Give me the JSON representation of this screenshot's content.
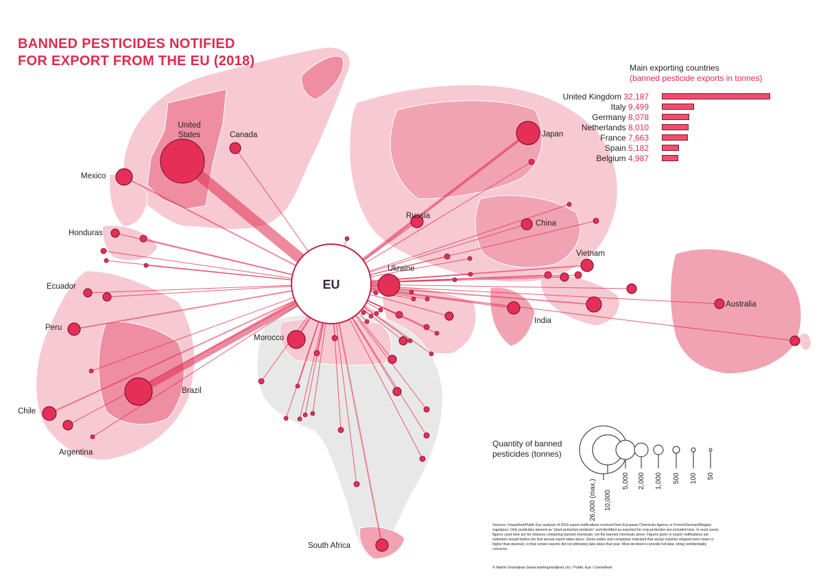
{
  "title": {
    "line1": "BANNED PESTICIDES NOTIFIED",
    "line2": "FOR EXPORT FROM THE EU (2018)"
  },
  "colors": {
    "accent": "#e0294f",
    "flow": "#e0294f",
    "land_base": "#e6e6e6",
    "land_light": "#f7c9d3",
    "land_medium": "#f1a3b4",
    "circle_fill": "#e62f57",
    "circle_stroke": "#7a1530"
  },
  "hub": {
    "label": "EU"
  },
  "main_exporters": {
    "heading": "Main exporting countries",
    "subheading": "(banned pesticide exports in tonnes)",
    "max": 32187,
    "rows": [
      {
        "country": "United Kingdom",
        "value_text": "32,187",
        "value": 32187
      },
      {
        "country": "Italy",
        "value_text": "9,499",
        "value": 9499
      },
      {
        "country": "Germany",
        "value_text": "8,078",
        "value": 8078
      },
      {
        "country": "Netherlands",
        "value_text": "8,010",
        "value": 8010
      },
      {
        "country": "France",
        "value_text": "7,663",
        "value": 7663
      },
      {
        "country": "Spain",
        "value_text": "5,182",
        "value": 5182
      },
      {
        "country": "Belgium",
        "value_text": "4,987",
        "value": 4987
      }
    ]
  },
  "country_labels": {
    "united_states": "United States",
    "canada": "Canada",
    "mexico": "Mexico",
    "honduras": "Honduras",
    "ecuador": "Ecuador",
    "peru": "Peru",
    "chile": "Chile",
    "argentina": "Argentina",
    "brazil": "Brazil",
    "morocco": "Morocco",
    "south_africa": "South Africa",
    "russia": "Russia",
    "ukraine": "Ukraine",
    "china": "China",
    "japan": "Japan",
    "vietnam": "Vietnam",
    "india": "India",
    "australia": "Australia"
  },
  "size_legend": {
    "title_line1": "Quantity of banned",
    "title_line2": "pesticides (tonnes)",
    "values": [
      "26,000 (max.)",
      "10,000",
      "5,000",
      "2,000",
      "1,000",
      "500",
      "100",
      "50"
    ]
  },
  "sources_text": "Sources: Unearthed/Public Eye analysis of 2018 export notifications received from European Chemicals Agency or French/German/Belgian regulators. Only pesticides banned as \"plant protection products\" and identified as exported for crop protection are included here. In most cases, figures used here are for mixtures containing banned chemicals, not the banned chemicals alone. Figures given in export notifications are estimates issued before the first annual export takes place. Some states and companies indicated that actual volumes shipped were lower or higher than planned, or that certain exports did not ultimately take place that year. Most declined to provide full data, citing confidentiality concerns.",
  "credit_text": "© Martin Grandjean (www.martingrandjean.ch) / Public Eye / Unearthed"
}
